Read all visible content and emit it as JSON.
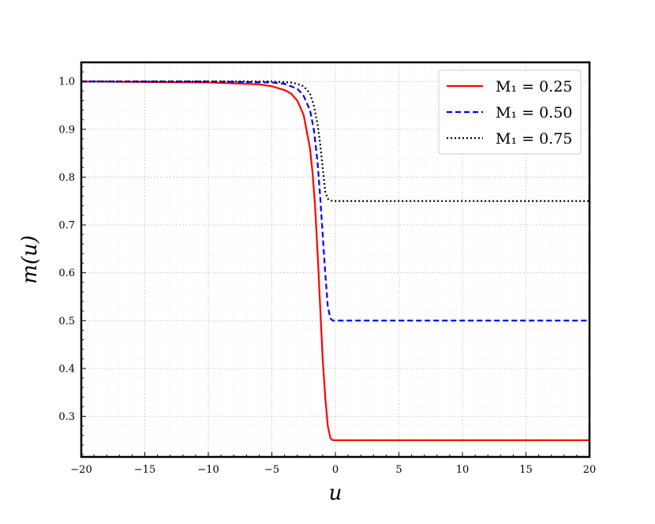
{
  "chart_data": {
    "type": "line",
    "title": "",
    "xlabel": "u",
    "ylabel": "m(u)",
    "xlim": [
      -20,
      20
    ],
    "ylim": [
      0.215,
      1.04
    ],
    "xticks": [
      -20,
      -15,
      -10,
      -5,
      0,
      5,
      10,
      15,
      20
    ],
    "xtick_labels": [
      "−20",
      "−15",
      "−10",
      "−5",
      "0",
      "5",
      "10",
      "15",
      "20"
    ],
    "yticks": [
      0.3,
      0.4,
      0.5,
      0.6,
      0.7,
      0.8,
      0.9,
      1.0
    ],
    "ytick_labels": [
      "0.3",
      "0.4",
      "0.5",
      "0.6",
      "0.7",
      "0.8",
      "0.9",
      "1.0"
    ],
    "grid": true,
    "legend_position": "top-right",
    "series": [
      {
        "name": "M₁ = 0.25",
        "color": "#ff0000",
        "dash": "solid",
        "x": [
          -20,
          -10,
          -6,
          -5,
          -4,
          -3.5,
          -3,
          -2.5,
          -2,
          -1.8,
          -1.6,
          -1.4,
          -1.2,
          -1.0,
          -0.8,
          -0.6,
          -0.4,
          -0.3,
          -0.2,
          0,
          5,
          10,
          20
        ],
        "y": [
          1.0,
          0.998,
          0.994,
          0.99,
          0.982,
          0.975,
          0.96,
          0.93,
          0.86,
          0.81,
          0.74,
          0.64,
          0.53,
          0.42,
          0.34,
          0.28,
          0.255,
          0.252,
          0.25,
          0.25,
          0.25,
          0.25,
          0.25
        ]
      },
      {
        "name": "M₁ = 0.50",
        "color": "#0000ff",
        "dash": "dashed",
        "x": [
          -20,
          -10,
          -5,
          -4,
          -3,
          -2.5,
          -2,
          -1.7,
          -1.4,
          -1.2,
          -1.0,
          -0.8,
          -0.6,
          -0.4,
          -0.3,
          -0.2,
          0,
          5,
          10,
          20
        ],
        "y": [
          1.0,
          1.0,
          0.998,
          0.995,
          0.985,
          0.97,
          0.94,
          0.9,
          0.83,
          0.76,
          0.68,
          0.6,
          0.53,
          0.505,
          0.502,
          0.5,
          0.5,
          0.5,
          0.5,
          0.5
        ]
      },
      {
        "name": "M₁ = 0.75",
        "color": "#000000",
        "dash": "dotted",
        "x": [
          -20,
          -10,
          -5,
          -3.5,
          -3,
          -2.5,
          -2,
          -1.7,
          -1.4,
          -1.2,
          -1.0,
          -0.8,
          -0.6,
          -0.4,
          0,
          5,
          10,
          20
        ],
        "y": [
          1.0,
          1.0,
          1.0,
          0.998,
          0.995,
          0.99,
          0.975,
          0.95,
          0.91,
          0.87,
          0.82,
          0.77,
          0.755,
          0.751,
          0.75,
          0.75,
          0.75,
          0.75
        ]
      }
    ]
  }
}
